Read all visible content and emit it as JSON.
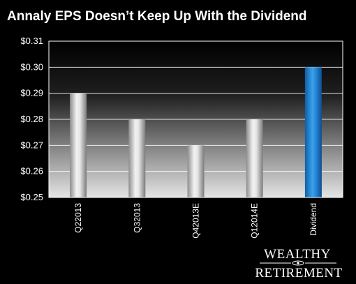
{
  "chart_data": {
    "type": "bar",
    "title": "Annaly EPS Doesn’t Keep Up With the Dividend",
    "categories": [
      "Q22013",
      "Q32013",
      "Q42013E",
      "Q12014E",
      "Dividend"
    ],
    "values": [
      0.29,
      0.28,
      0.27,
      0.28,
      0.3
    ],
    "ylim": [
      0.25,
      0.31
    ],
    "yticks": [
      0.25,
      0.26,
      0.27,
      0.28,
      0.29,
      0.3,
      0.31
    ],
    "ytick_labels": [
      "$0.25",
      "$0.26",
      "$0.27",
      "$0.28",
      "$0.29",
      "$0.30",
      "$0.31"
    ],
    "grid": true,
    "legend": "none",
    "colors": {
      "eps_bars": "#c8c8c8",
      "dividend_bar": "#1f86d8",
      "background_top": "#000000",
      "background_bottom": "#e0e0e0",
      "gridlines": "#ffffff"
    }
  },
  "logo": {
    "line1": "WEALTHY",
    "line2": "RETIREMENT"
  }
}
